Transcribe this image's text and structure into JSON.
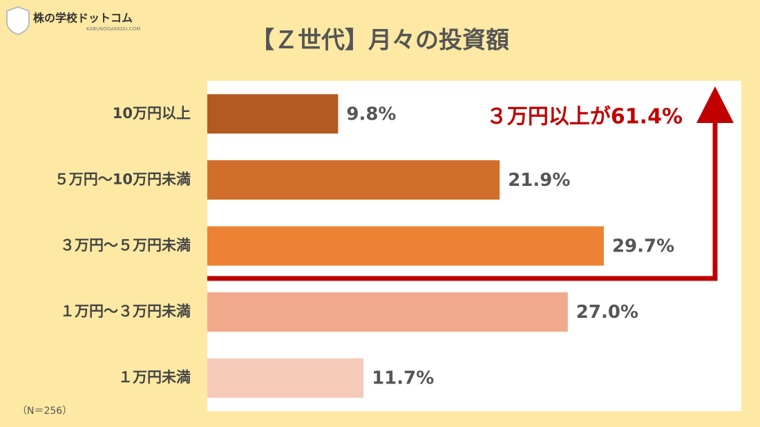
{
  "brand": {
    "name": "株の学校ドットコム",
    "url": "KABUNOGAKKOU.COM"
  },
  "chart_data": {
    "type": "bar",
    "orientation": "horizontal",
    "title": "【Ｚ世代】月々の投資額",
    "categories": [
      "10万円以上",
      "５万円～10万円未満",
      "３万円～５万円未満",
      "１万円～３万円未満",
      "１万円未満"
    ],
    "values": [
      9.8,
      21.9,
      29.7,
      27.0,
      11.7
    ],
    "value_labels": [
      "9.8%",
      "21.9%",
      "29.7%",
      "27.0%",
      "11.7%"
    ],
    "colors": [
      "#b35a22",
      "#d16e2b",
      "#ee8234",
      "#f0a98a",
      "#f5cab9"
    ],
    "xlim": [
      0,
      40
    ],
    "annotation": "３万円以上が61.4%",
    "note": "（N＝256）"
  }
}
